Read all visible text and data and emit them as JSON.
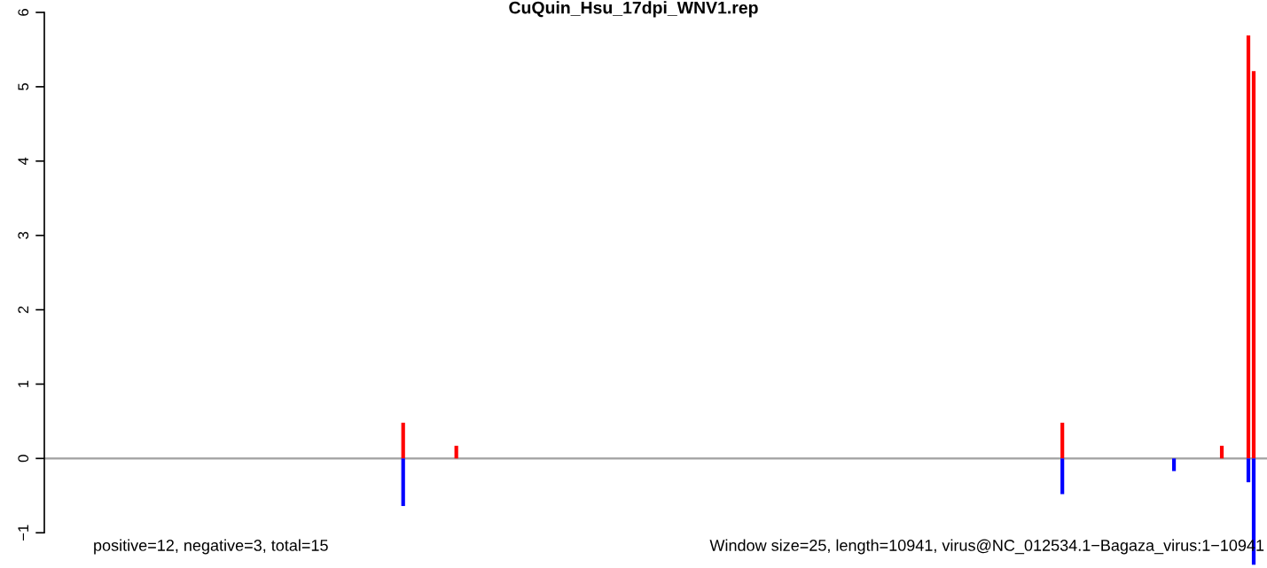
{
  "chart_data": {
    "type": "bar",
    "title": "CuQuin_Hsu_17dpi_WNV1.rep",
    "annotations": [
      "positive=12, negative=3, total=15",
      "Window size=25, length=10941, virus@NC_012534.1−Bagaza_virus:1−10941"
    ],
    "categories": [
      null,
      null,
      null,
      null,
      null,
      null,
      null,
      null,
      null,
      null,
      null,
      null,
      null,
      null,
      null,
      null,
      null,
      null,
      null,
      null,
      null,
      null,
      null,
      null,
      null,
      null,
      null,
      null,
      null,
      null,
      null,
      null,
      null,
      null,
      null,
      null,
      null,
      null,
      null,
      null,
      null,
      null,
      null,
      null,
      null,
      null,
      null,
      null,
      null,
      null,
      null,
      null,
      null,
      null,
      null,
      null,
      null,
      null,
      null,
      null,
      null,
      null,
      null,
      null,
      null,
      null,
      null,
      null,
      null,
      null,
      null,
      null,
      null,
      null,
      null,
      null,
      null,
      null,
      null,
      null,
      null,
      null,
      null,
      null,
      null,
      null,
      null,
      null,
      null,
      null,
      null,
      null,
      null,
      null,
      null,
      null,
      null,
      null,
      null,
      null,
      null,
      null,
      null,
      null,
      null,
      null,
      null,
      null,
      null,
      null,
      null,
      null,
      null,
      null,
      null,
      null,
      null,
      null,
      null,
      null,
      null,
      null,
      null,
      null,
      null,
      null,
      null,
      null,
      null,
      null,
      null,
      null,
      null,
      null,
      null,
      null,
      null,
      null,
      null,
      null,
      null,
      null,
      null,
      null,
      null,
      null,
      null,
      null,
      null,
      null,
      null,
      null,
      null,
      null,
      null,
      null,
      null,
      null,
      null,
      null,
      null,
      null,
      null,
      null,
      null,
      null,
      null,
      null,
      null,
      null,
      null,
      null,
      null,
      null,
      null,
      null,
      null,
      null,
      null,
      null,
      null,
      null,
      null,
      null,
      null,
      null,
      null,
      null,
      null,
      null,
      null,
      null,
      null,
      null,
      null,
      null,
      null,
      null,
      null,
      null,
      null,
      null,
      null,
      null,
      null,
      null,
      null,
      null,
      null,
      null,
      null,
      null,
      null,
      null,
      null,
      null,
      null,
      null,
      null,
      null,
      null,
      null,
      null,
      null,
      null,
      null,
      null,
      null,
      null,
      null
    ],
    "series": [
      {
        "color": "#ff0000",
        "values": [
          null,
          null,
          null,
          null,
          null,
          null,
          null,
          null,
          null,
          null,
          null,
          null,
          null,
          null,
          null,
          null,
          null,
          null,
          null,
          null,
          null,
          null,
          null,
          null,
          null,
          null,
          null,
          null,
          null,
          null,
          null,
          null,
          null,
          null,
          null,
          null,
          null,
          null,
          null,
          null,
          null,
          null,
          null,
          null,
          null,
          null,
          null,
          null,
          null,
          null,
          null,
          null,
          null,
          null,
          null,
          null,
          null,
          null,
          null,
          null,
          null,
          null,
          null,
          null,
          null,
          null,
          null,
          0.48,
          null,
          null,
          null,
          null,
          null,
          null,
          null,
          null,
          null,
          0.17,
          null,
          null,
          null,
          null,
          null,
          null,
          null,
          null,
          null,
          null,
          null,
          null,
          null,
          null,
          null,
          null,
          null,
          null,
          null,
          null,
          null,
          null,
          null,
          null,
          null,
          null,
          null,
          null,
          null,
          null,
          null,
          null,
          null,
          null,
          null,
          null,
          null,
          null,
          null,
          null,
          null,
          null,
          null,
          null,
          null,
          null,
          null,
          null,
          null,
          null,
          null,
          null,
          null,
          null,
          null,
          null,
          null,
          null,
          null,
          null,
          null,
          null,
          null,
          null,
          null,
          null,
          null,
          null,
          null,
          null,
          null,
          null,
          null,
          null,
          null,
          null,
          null,
          null,
          null,
          null,
          null,
          null,
          null,
          null,
          null,
          null,
          null,
          null,
          null,
          null,
          null,
          null,
          null,
          null,
          null,
          null,
          null,
          null,
          null,
          null,
          null,
          null,
          null,
          null,
          null,
          null,
          null,
          null,
          null,
          null,
          null,
          null,
          null,
          0.48,
          null,
          null,
          null,
          null,
          null,
          null,
          null,
          null,
          null,
          null,
          null,
          null,
          null,
          null,
          null,
          null,
          null,
          null,
          null,
          null,
          null,
          null,
          null,
          null,
          null,
          null,
          null,
          null,
          null,
          0.17,
          null,
          null,
          null,
          null,
          5.69,
          5.21,
          null,
          null
        ]
      },
      {
        "color": "#0000ff",
        "values": [
          null,
          null,
          null,
          null,
          null,
          null,
          null,
          null,
          null,
          null,
          null,
          null,
          null,
          null,
          null,
          null,
          null,
          null,
          null,
          null,
          null,
          null,
          null,
          null,
          null,
          null,
          null,
          null,
          null,
          null,
          null,
          null,
          null,
          null,
          null,
          null,
          null,
          null,
          null,
          null,
          null,
          null,
          null,
          null,
          null,
          null,
          null,
          null,
          null,
          null,
          null,
          null,
          null,
          null,
          null,
          null,
          null,
          null,
          null,
          null,
          null,
          null,
          null,
          null,
          null,
          null,
          null,
          -0.64,
          null,
          null,
          null,
          null,
          null,
          null,
          null,
          null,
          null,
          null,
          null,
          null,
          null,
          null,
          null,
          null,
          null,
          null,
          null,
          null,
          null,
          null,
          null,
          null,
          null,
          null,
          null,
          null,
          null,
          null,
          null,
          null,
          null,
          null,
          null,
          null,
          null,
          null,
          null,
          null,
          null,
          null,
          null,
          null,
          null,
          null,
          null,
          null,
          null,
          null,
          null,
          null,
          null,
          null,
          null,
          null,
          null,
          null,
          null,
          null,
          null,
          null,
          null,
          null,
          null,
          null,
          null,
          null,
          null,
          null,
          null,
          null,
          null,
          null,
          null,
          null,
          null,
          null,
          null,
          null,
          null,
          null,
          null,
          null,
          null,
          null,
          null,
          null,
          null,
          null,
          null,
          null,
          null,
          null,
          null,
          null,
          null,
          null,
          null,
          null,
          null,
          null,
          null,
          null,
          null,
          null,
          null,
          null,
          null,
          null,
          null,
          null,
          null,
          null,
          null,
          null,
          null,
          null,
          null,
          null,
          null,
          null,
          null,
          -0.48,
          null,
          null,
          null,
          null,
          null,
          null,
          null,
          null,
          null,
          null,
          null,
          null,
          null,
          null,
          null,
          null,
          null,
          null,
          null,
          null,
          -0.17,
          null,
          null,
          null,
          null,
          null,
          null,
          null,
          null,
          null,
          null,
          null,
          null,
          null,
          -0.32,
          -1.43,
          null,
          null
        ]
      }
    ],
    "ylim": [
      -1.45,
      6
    ],
    "yticks": [
      {
        "value": -1,
        "label": "−1"
      },
      0,
      1,
      2,
      3,
      4,
      5,
      6
    ],
    "ref_lines": [
      {
        "axis": "y",
        "value": 0,
        "color": "#a0a0a0"
      }
    ],
    "tick_labels": "y",
    "grid": false,
    "legend": false
  }
}
